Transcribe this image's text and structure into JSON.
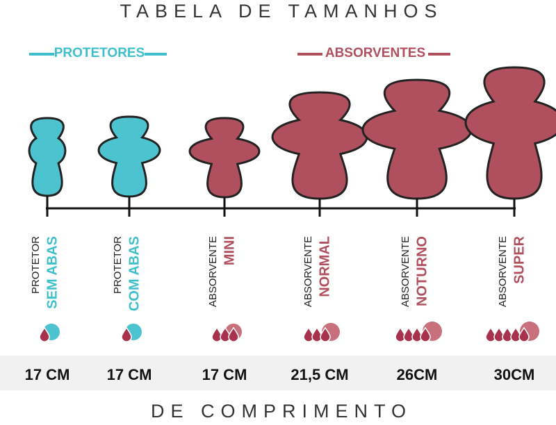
{
  "header": {
    "title": "TABELA DE TAMANHOS"
  },
  "groups": [
    {
      "label": "PROTETORES"
    },
    {
      "label": "ABSORVENTES"
    }
  ],
  "items": [
    {
      "type": "PROTETOR",
      "name": "SEM ABAS",
      "size": "17 CM"
    },
    {
      "type": "PROTETOR",
      "name": "COM ABAS",
      "size": "17 CM"
    },
    {
      "type": "ABSORVENTE",
      "name": "MINI",
      "size": "17 CM"
    },
    {
      "type": "ABSORVENTE",
      "name": "NORMAL",
      "size": "21,5 CM"
    },
    {
      "type": "ABSORVENTE",
      "name": "NOTURNO",
      "size": "26CM"
    },
    {
      "type": "ABSORVENTE",
      "name": "SUPER",
      "size": "30CM"
    }
  ],
  "footer": {
    "text": "DE COMPRIMENTO"
  }
}
